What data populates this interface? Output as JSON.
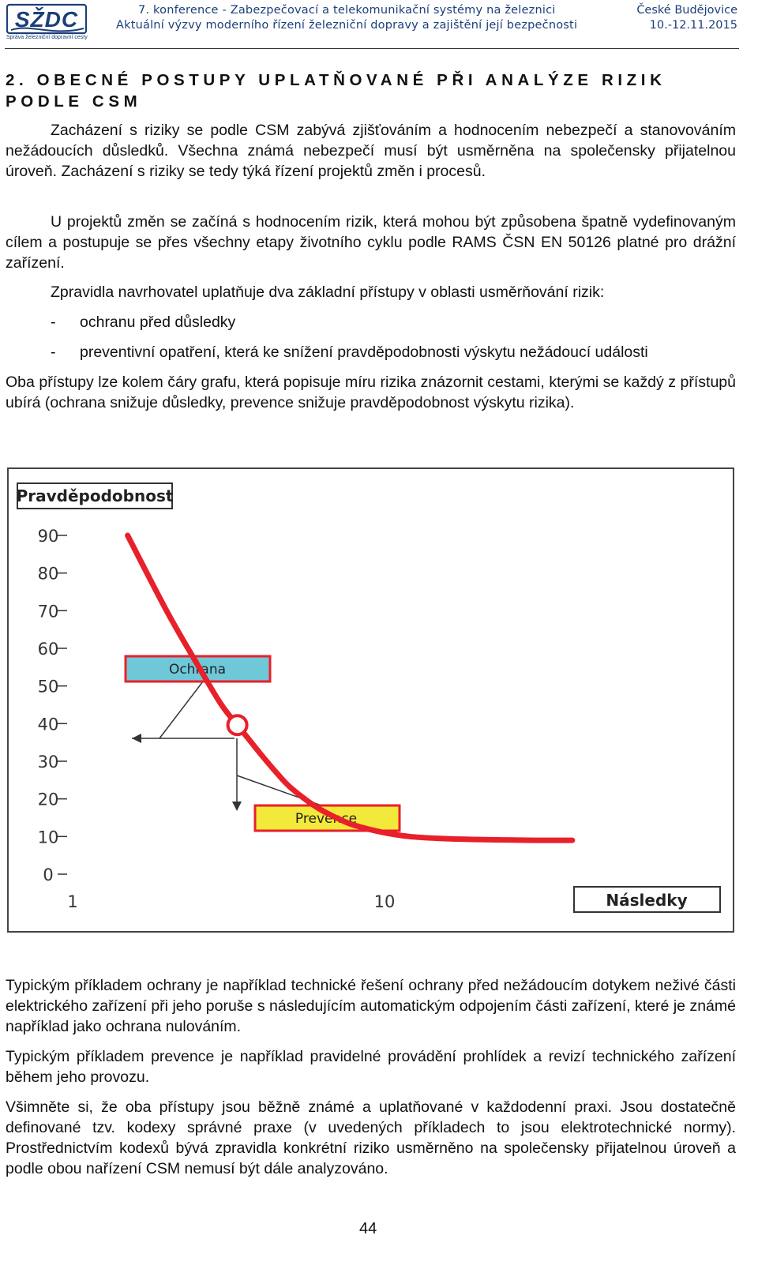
{
  "header": {
    "logo_text": "SŽDC",
    "logo_subtitle": "Správa železniční dopravní cesty",
    "conference_title": "7. konference - Zabezpečovací a telekomunikační systémy na železnici",
    "conference_subtitle": "Aktuální výzvy moderního řízení železniční dopravy a zajištění její bezpečnosti",
    "city": "České Budějovice",
    "date": "10.-12.11.2015"
  },
  "heading": {
    "line1": "2. OBECNÉ POSTUPY UPLATŇOVANÉ PŘI ANALÝZE RIZIK",
    "line2": "PODLE CSM"
  },
  "paragraphs": {
    "p1": "Zacházení s riziky se podle CSM zabývá zjišťováním a hodnocením nebezpečí a stanovováním nežádoucích důsledků. Všechna známá nebezpečí musí být usměrněna na společensky přijatelnou úroveň. Zacházení s riziky se tedy týká řízení projektů změn i procesů.",
    "p2": "U projektů změn se začíná s hodnocením rizik, která mohou být způsobena špatně vydefinovaným cílem a postupuje se přes všechny etapy životního cyklu podle RAMS ČSN EN 50126 platné pro drážní zařízení.",
    "p3": "Zpravidla navrhovatel uplatňuje dva základní přístupy v oblasti usměrňování rizik:",
    "bullet_dash": "-",
    "bullet1": "ochranu před důsledky",
    "bullet2": "preventivní opatření, která ke snížení pravděpodobnosti výskytu nežádoucí události",
    "p4": "Oba přístupy lze kolem čáry grafu, která popisuje míru rizika znázornit cestami, kterými se každý z přístupů ubírá (ochrana snižuje důsledky, prevence snižuje pravděpodobnost výskytu rizika).",
    "p5": "Typickým příkladem ochrany je například technické řešení ochrany před nežádoucím dotykem neživé části elektrického zařízení při jeho poruše s následujícím automatickým odpojením části zařízení, které je známé například jako ochrana nulováním.",
    "p6": "Typickým příkladem prevence je například pravidelné provádění prohlídek a revizí technického zařízení během jeho provozu.",
    "p7": "Všimněte si, že oba přístupy jsou běžně známé a uplatňované v každodenní praxi. Jsou dostatečně definované tzv. kodexy správné praxe (v uvedených příkladech to jsou elektrotechnické normy). Prostřednictvím kodexů bývá zpravidla konkrétní riziko usměrněno na společensky přijatelnou úroveň a podle obou nařízení CSM nemusí být dále analyzováno."
  },
  "chart_data": {
    "type": "line",
    "ylabel": "Pravděpodobnost",
    "xlabel": "Následky",
    "y_ticks": [
      "90",
      "80",
      "70",
      "60",
      "50",
      "40",
      "30",
      "20",
      "10",
      "0"
    ],
    "x_ticks": [
      "1",
      "10"
    ],
    "ylim": [
      0,
      90
    ],
    "x_scale": "log",
    "grid": false,
    "series": [
      {
        "color": "#e8202a",
        "x": [
          1.5,
          2.0,
          2.5,
          3.0,
          3.5,
          4.0,
          4.5,
          5.0,
          6.0,
          7.0,
          8.0,
          10.0,
          12.0,
          15.0,
          20.0,
          30.0,
          40.0
        ],
        "y": [
          90,
          70,
          56,
          45,
          38,
          32,
          27,
          23,
          18,
          15,
          13,
          11,
          10,
          9.5,
          9.2,
          9.0,
          9.0
        ]
      }
    ],
    "annotations": [
      {
        "label": "Ochrana",
        "color": "#6ec8d8",
        "border": "#e8202a"
      },
      {
        "label": "Prevence",
        "color": "#f2e93a",
        "border": "#e8202a"
      }
    ],
    "marker_color": "#e8202a"
  },
  "page_number": "44"
}
